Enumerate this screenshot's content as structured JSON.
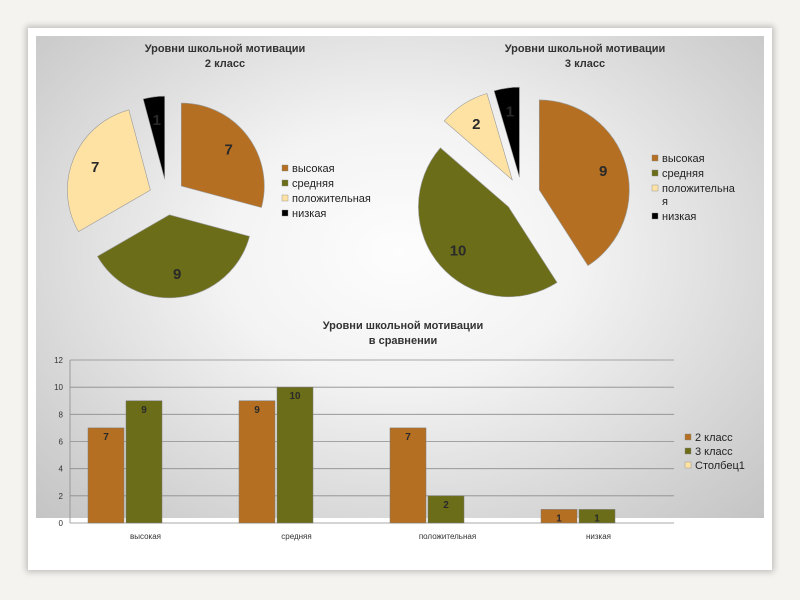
{
  "colors": {
    "vysokaya": "#b46f22",
    "srednyaya": "#6b6d19",
    "polozhitelnaya": "#fde2a4",
    "nizkaya": "#000000"
  },
  "chart_data": [
    {
      "type": "pie",
      "title": "Уровни школьной мотивации",
      "subtitle": "2 класс",
      "labels": [
        "высокая",
        "средняя",
        "положительная",
        "низкая"
      ],
      "values": [
        7,
        9,
        7,
        1
      ],
      "legend": "right"
    },
    {
      "type": "pie",
      "title": "Уровни школьной мотивации",
      "subtitle": "3 класс",
      "labels": [
        "высокая",
        "средняя",
        "положительна я",
        "низкая"
      ],
      "values": [
        9,
        10,
        2,
        1
      ],
      "legend": "right"
    },
    {
      "type": "bar",
      "title": "Уровни школьной мотивации",
      "subtitle": "в сравнении",
      "categories": [
        "высокая",
        "средняя",
        "положительная",
        "низкая"
      ],
      "series": [
        {
          "name": "2 класс",
          "values": [
            7,
            9,
            7,
            1
          ]
        },
        {
          "name": "3 класс",
          "values": [
            9,
            10,
            2,
            1
          ]
        },
        {
          "name": "Столбец1",
          "values": [
            null,
            null,
            null,
            null
          ]
        }
      ],
      "ylim": [
        0,
        12
      ],
      "yticks": [
        0,
        2,
        4,
        6,
        8,
        10,
        12
      ],
      "grid": true,
      "legend": "right"
    }
  ]
}
